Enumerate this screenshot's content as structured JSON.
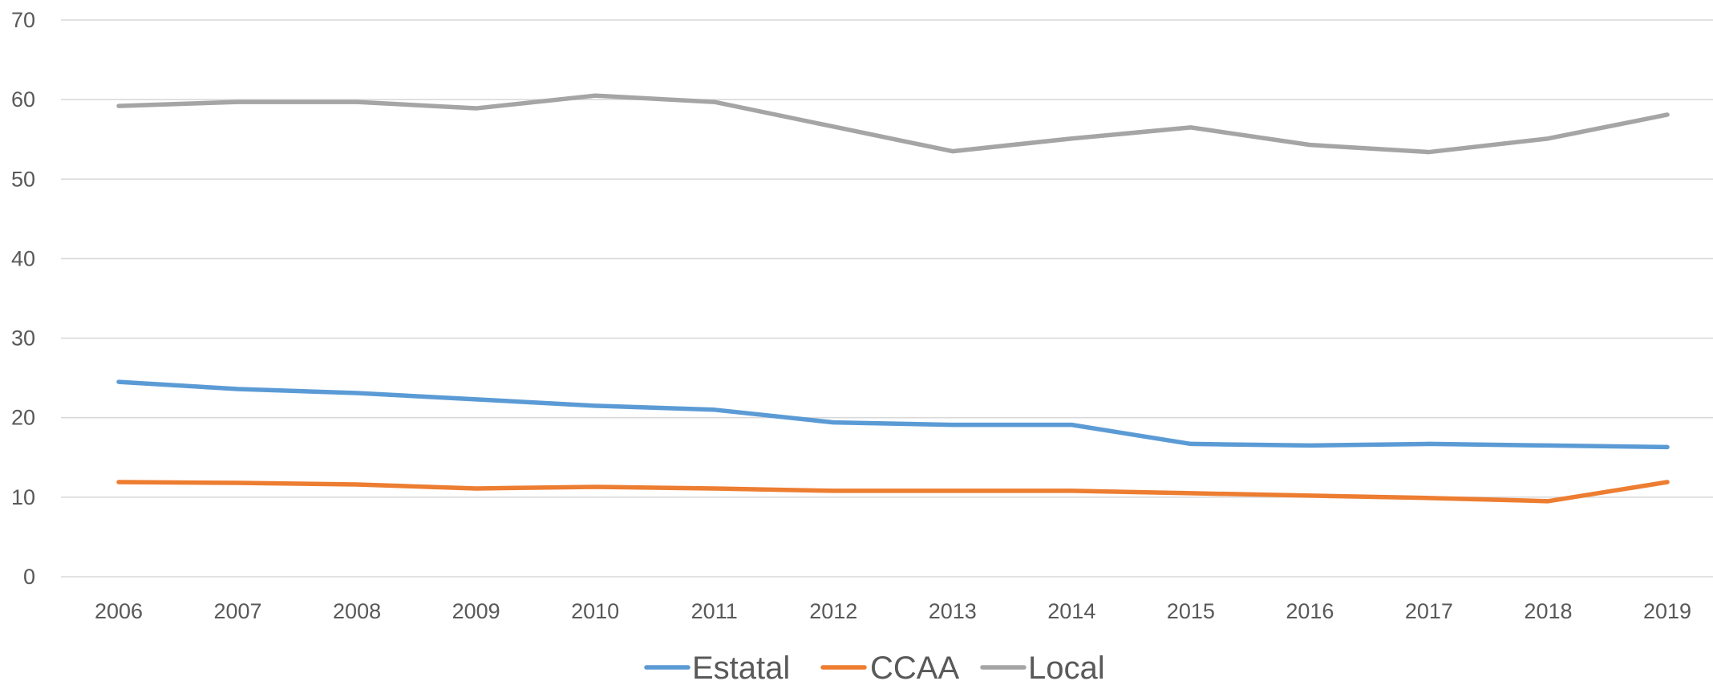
{
  "chart_data": {
    "type": "line",
    "title": "",
    "xlabel": "",
    "ylabel": "",
    "ylim": [
      0,
      70
    ],
    "yticks": [
      0,
      10,
      20,
      30,
      40,
      50,
      60,
      70
    ],
    "grid": true,
    "legend_position": "bottom",
    "categories": [
      "2006",
      "2007",
      "2008",
      "2009",
      "2010",
      "2011",
      "2012",
      "2013",
      "2014",
      "2015",
      "2016",
      "2017",
      "2018",
      "2019"
    ],
    "series": [
      {
        "name": "Estatal",
        "color": "#5b9bd5",
        "values": [
          24.5,
          23.6,
          23.1,
          22.3,
          21.5,
          21.0,
          19.4,
          19.1,
          19.1,
          16.7,
          16.5,
          16.7,
          16.5,
          16.3
        ]
      },
      {
        "name": "CCAA",
        "color": "#ed7d31",
        "values": [
          11.9,
          11.8,
          11.6,
          11.1,
          11.3,
          11.1,
          10.8,
          10.8,
          10.8,
          10.5,
          10.2,
          9.9,
          9.5,
          11.9
        ]
      },
      {
        "name": "Local",
        "color": "#a5a5a5",
        "values": [
          59.2,
          59.7,
          59.7,
          58.9,
          60.5,
          59.7,
          56.6,
          53.5,
          55.1,
          56.5,
          54.3,
          53.4,
          55.1,
          58.1
        ]
      }
    ]
  }
}
